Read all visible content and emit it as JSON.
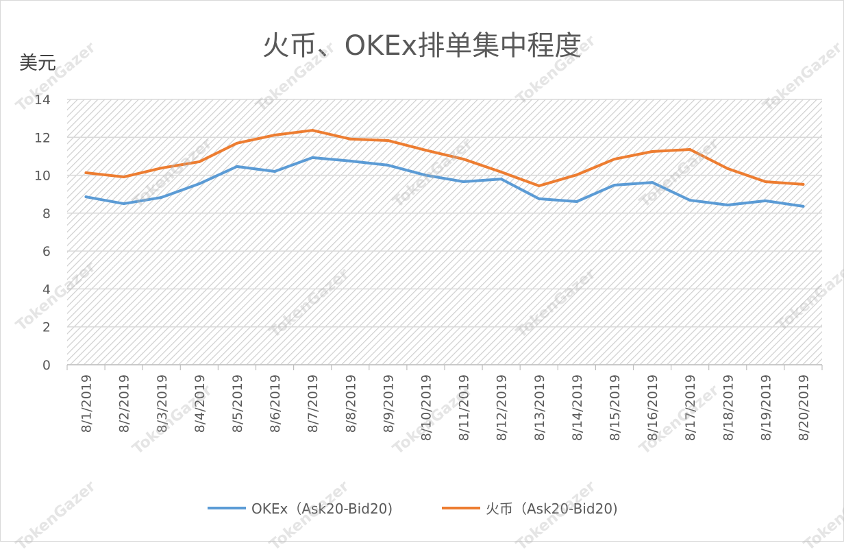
{
  "chart_data": {
    "type": "line",
    "title": "火币、OKEx排单集中程度",
    "ylabel": "美元",
    "xlabel": "",
    "ylim": [
      0,
      14
    ],
    "yticks": [
      0,
      2,
      4,
      6,
      8,
      10,
      12,
      14
    ],
    "grid": true,
    "legend_position": "bottom",
    "categories": [
      "8/1/2019",
      "8/2/2019",
      "8/3/2019",
      "8/4/2019",
      "8/5/2019",
      "8/6/2019",
      "8/7/2019",
      "8/8/2019",
      "8/9/2019",
      "8/10/2019",
      "8/11/2019",
      "8/12/2019",
      "8/13/2019",
      "8/14/2019",
      "8/15/2019",
      "8/16/2019",
      "8/17/2019",
      "8/18/2019",
      "8/19/2019",
      "8/20/2019"
    ],
    "series": [
      {
        "name": "OKEx（Ask20-Bid20)",
        "color": "#5b9bd5",
        "values": [
          8.86,
          8.5,
          8.83,
          9.55,
          10.46,
          10.2,
          10.93,
          10.75,
          10.53,
          10.0,
          9.66,
          9.8,
          8.76,
          8.61,
          9.48,
          9.62,
          8.68,
          8.43,
          8.65,
          8.36
        ]
      },
      {
        "name": "火币（Ask20-Bid20)",
        "color": "#ed7d31",
        "values": [
          10.13,
          9.91,
          10.38,
          10.71,
          11.69,
          12.12,
          12.37,
          11.91,
          11.83,
          11.32,
          10.85,
          10.17,
          9.44,
          10.02,
          10.85,
          11.25,
          11.36,
          10.35,
          9.66,
          9.52
        ]
      }
    ]
  },
  "watermark": "TokenGazer"
}
